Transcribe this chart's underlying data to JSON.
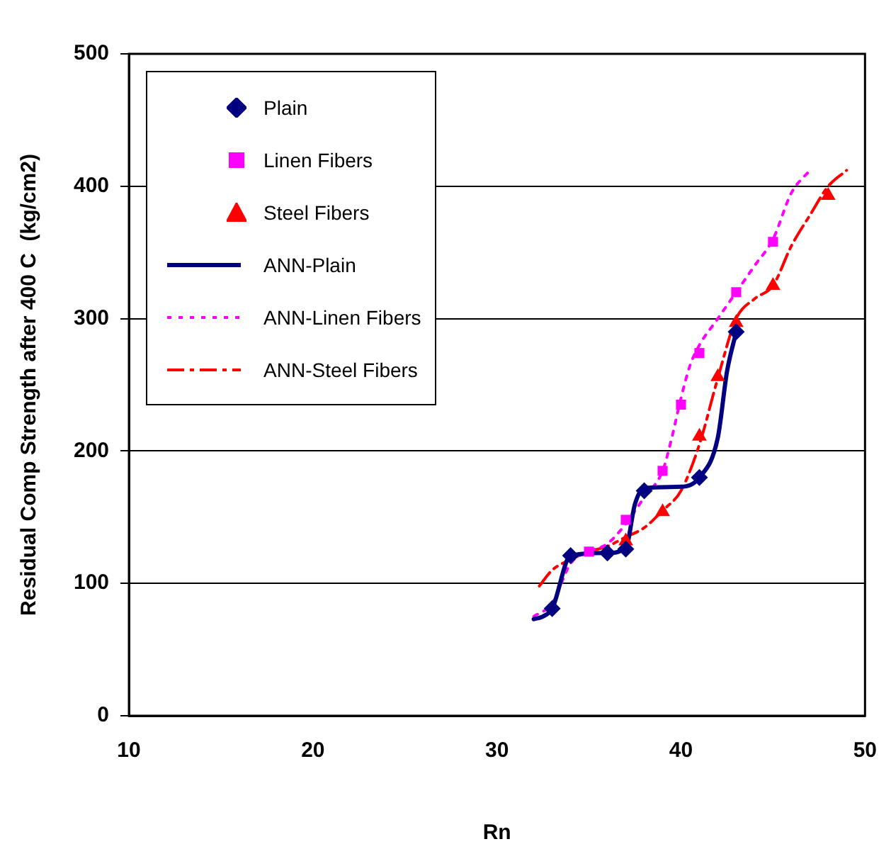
{
  "chart_data": {
    "type": "scatter",
    "xlabel": "Rn",
    "ylabel": "Residual Comp Strength after 400 C  (kg/cm2)",
    "xlim": [
      10,
      50
    ],
    "xticks": [
      10,
      20,
      30,
      40,
      50
    ],
    "ylim": [
      0,
      500
    ],
    "yticks": [
      0,
      100,
      200,
      300,
      400,
      500
    ],
    "grid": "y",
    "legend": "top left",
    "series": [
      {
        "name": "Plain",
        "marker": "diamond",
        "color": "#000080",
        "x": [
          33,
          34,
          36,
          37,
          38,
          41,
          43
        ],
        "values": [
          81,
          121,
          123,
          126,
          170,
          180,
          290
        ]
      },
      {
        "name": "Linen Fibers",
        "marker": "square",
        "color": "#ff00ff",
        "x": [
          35,
          37,
          39,
          40,
          41,
          43,
          45
        ],
        "values": [
          124,
          148,
          185,
          235,
          274,
          320,
          358
        ]
      },
      {
        "name": "Steel Fibers",
        "marker": "triangle",
        "color": "#ff0000",
        "x": [
          37,
          39,
          41,
          42,
          43,
          45,
          48
        ],
        "values": [
          132,
          154,
          211,
          256,
          297,
          325,
          393
        ]
      },
      {
        "name": "ANN-Plain",
        "type": "line",
        "line_style": "solid",
        "color": "#000080",
        "x": [
          32,
          32.5,
          33,
          34,
          36,
          37,
          37.5,
          38,
          40,
          41,
          42,
          42.5,
          43
        ],
        "values": [
          73,
          75,
          81,
          121,
          123,
          127,
          160,
          172,
          173,
          180,
          210,
          260,
          290
        ]
      },
      {
        "name": "ANN-Linen Fibers",
        "type": "line",
        "line_style": "dotted",
        "color": "#ff00ff",
        "x": [
          32,
          33,
          34,
          35,
          36,
          37,
          38,
          39,
          39.5,
          40,
          40.5,
          41,
          42,
          43,
          44,
          45,
          46,
          47
        ],
        "values": [
          75,
          85,
          115,
          124,
          130,
          145,
          165,
          185,
          210,
          240,
          265,
          280,
          300,
          320,
          340,
          360,
          395,
          412
        ]
      },
      {
        "name": "ANN-Steel Fibers",
        "type": "line",
        "line_style": "dashed",
        "color": "#ff0000",
        "x": [
          32.3,
          33,
          34,
          35,
          36,
          37,
          38,
          39,
          40,
          41,
          42,
          43,
          44,
          45,
          46,
          47,
          48,
          49
        ],
        "values": [
          98,
          110,
          118,
          124,
          128,
          135,
          142,
          155,
          170,
          205,
          255,
          300,
          315,
          325,
          355,
          378,
          400,
          412
        ]
      }
    ]
  }
}
